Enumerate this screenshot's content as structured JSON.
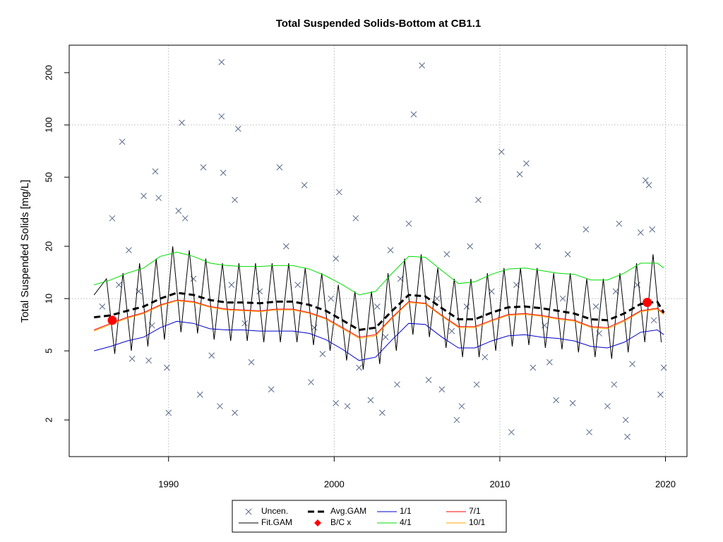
{
  "chart_data": {
    "type": "line",
    "title": "Total Suspended Solids-Bottom at CB1.1",
    "y_label": "Total Suspended Solids [mg/L]",
    "log_y": true,
    "xlim": [
      1984,
      2021.3
    ],
    "ylim": [
      1.23,
      288
    ],
    "xticks": [
      1990,
      2000,
      2010,
      2020
    ],
    "yticks": [
      2,
      5,
      10,
      20,
      50,
      100,
      200
    ],
    "x_grid": true,
    "y_grid": [
      10,
      100
    ],
    "series": [
      {
        "name": "Uncen.",
        "color": "#5b6b8c",
        "style": "points",
        "x": [
          1993.2,
          2005.3,
          2004.8,
          1993.2,
          1990.8,
          1994.2,
          1987.2,
          2010.1,
          2011.6,
          1989.2,
          1993.3,
          1996.7,
          1992.1,
          2011.2,
          2018.8,
          2019.0,
          1998.2,
          2000.3,
          1988.5,
          1989.4,
          2008.7,
          1994.0,
          1990.6,
          1986.6,
          1991.0,
          2001.3,
          2004.5,
          2017.2,
          2015.2,
          2019.2,
          2018.5,
          2008.2,
          1997.1,
          2012.3,
          2003.4,
          1987.6,
          2000.1,
          2006.8,
          2014.1,
          1989.9,
          1990.0,
          1991.9,
          1993.1,
          1994.0,
          1996.2,
          1998.6,
          2000.1,
          2000.8,
          2002.2,
          2002.9,
          2003.8,
          2005.7,
          2006.5,
          2007.4,
          2007.7,
          2008.6,
          2010.7,
          2012.0,
          2013.4,
          2014.4,
          2015.4,
          2016.5,
          2016.9,
          2017.6,
          2017.7,
          2019.7,
          2019.9,
          1987.8,
          1988.8,
          1992.6,
          1995.0,
          1999.3,
          2001.5,
          2009.1,
          2013.0,
          2018.0,
          1986.0,
          1987.0,
          1988.2,
          1991.5,
          1993.8,
          1995.5,
          1997.8,
          1999.8,
          2002.6,
          2004.0,
          2006.2,
          2008.0,
          2009.5,
          2011.0,
          2013.8,
          2015.8,
          2017.0,
          2018.3,
          1989.0,
          1994.6,
          1998.8,
          2003.1,
          2007.1,
          2012.7,
          2016.0,
          2019.3
        ],
        "values": [
          230,
          220,
          115,
          112,
          103,
          95,
          80,
          70,
          60,
          54,
          53,
          57,
          57,
          52,
          48,
          45,
          45,
          41,
          39,
          38,
          37,
          37,
          32,
          29,
          29,
          29,
          27,
          27,
          25,
          25,
          24,
          20,
          20,
          20,
          19,
          19,
          17,
          18,
          18,
          4.0,
          2.2,
          2.8,
          2.4,
          2.2,
          3.0,
          3.3,
          2.5,
          2.4,
          2.6,
          2.2,
          3.2,
          3.4,
          3.0,
          2.0,
          2.4,
          3.2,
          1.7,
          4.0,
          2.6,
          2.5,
          1.7,
          2.4,
          3.2,
          2.0,
          1.6,
          2.8,
          4.0,
          4.5,
          4.4,
          4.7,
          4.3,
          4.8,
          4.0,
          4.6,
          4.3,
          4.2,
          9,
          12,
          11,
          13,
          12,
          11,
          12,
          10,
          9,
          13,
          10,
          9,
          11,
          12,
          10,
          9,
          11,
          12,
          7,
          7.2,
          6.8,
          6,
          6.5,
          7,
          6.3,
          7.5
        ]
      },
      {
        "name": "Fit.GAM",
        "color": "#000000",
        "style": "line",
        "x": [
          1985.5,
          1986.25,
          1986.75,
          1987.25,
          1987.75,
          1988.25,
          1988.75,
          1989.25,
          1989.75,
          1990.25,
          1990.75,
          1991.25,
          1991.75,
          1992.25,
          1992.75,
          1993.25,
          1993.75,
          1994.25,
          1994.75,
          1995.25,
          1995.75,
          1996.25,
          1996.75,
          1997.25,
          1997.75,
          1998.25,
          1998.75,
          1999.25,
          1999.75,
          2000.25,
          2000.75,
          2001.25,
          2001.75,
          2002.25,
          2002.75,
          2003.25,
          2003.75,
          2004.25,
          2004.75,
          2005.25,
          2005.75,
          2006.25,
          2006.75,
          2007.25,
          2007.75,
          2008.25,
          2008.75,
          2009.25,
          2009.75,
          2010.25,
          2010.75,
          2011.25,
          2011.75,
          2012.25,
          2012.75,
          2013.25,
          2013.75,
          2014.25,
          2014.75,
          2015.25,
          2015.75,
          2016.25,
          2016.75,
          2017.25,
          2017.75,
          2018.25,
          2018.75,
          2019.25,
          2019.75
        ],
        "values": [
          10.5,
          13,
          4.8,
          14,
          5.0,
          16,
          5.3,
          17,
          5.8,
          20,
          6.4,
          19,
          6.3,
          17,
          5.8,
          16,
          5.7,
          16,
          5.7,
          16,
          5.6,
          16,
          5.6,
          16,
          5.6,
          15,
          5.4,
          14,
          5.0,
          12,
          4.4,
          11,
          3.9,
          11,
          4.2,
          14,
          5.0,
          17,
          6.2,
          18,
          6.0,
          15,
          5.2,
          13,
          4.6,
          13,
          4.6,
          14,
          5.0,
          15,
          5.3,
          15,
          5.4,
          15,
          5.2,
          14,
          5.1,
          14,
          4.9,
          13,
          4.6,
          13,
          4.5,
          14,
          4.9,
          16,
          5.6,
          18,
          5.6
        ]
      },
      {
        "name": "Avg.GAM",
        "color": "#000000",
        "style": "dashed",
        "x": [
          1985.5,
          1986.5,
          1987.5,
          1988.5,
          1989.5,
          1990.5,
          1991.5,
          1992.5,
          1993.5,
          1994.5,
          1995.5,
          1996.5,
          1997.5,
          1998.5,
          1999.5,
          2000.5,
          2001.5,
          2002.5,
          2003.5,
          2004.5,
          2005.5,
          2006.5,
          2007.5,
          2008.5,
          2009.5,
          2010.5,
          2011.5,
          2012.5,
          2013.5,
          2014.5,
          2015.5,
          2016.5,
          2017.5,
          2018.5,
          2019.5,
          2019.9
        ],
        "values": [
          7.8,
          8.0,
          8.5,
          9.0,
          10.0,
          10.8,
          10.5,
          9.8,
          9.5,
          9.5,
          9.4,
          9.6,
          9.6,
          9.2,
          8.5,
          7.5,
          6.6,
          6.8,
          8.5,
          10.5,
          10.3,
          8.8,
          7.6,
          7.6,
          8.3,
          8.9,
          9.0,
          8.8,
          8.5,
          8.2,
          7.6,
          7.5,
          8.2,
          9.3,
          9.6,
          8.3
        ]
      },
      {
        "name": "B/C x",
        "color": "#ff0000",
        "style": "dots",
        "x": [
          1986.6,
          2018.9
        ],
        "values": [
          7.5,
          9.5
        ]
      },
      {
        "name": "1/1",
        "color": "#0000cd",
        "style": "line",
        "x": [
          1985.5,
          1986.5,
          1987.5,
          1988.5,
          1989.5,
          1990.5,
          1991.5,
          1992.5,
          1993.5,
          1994.5,
          1995.5,
          1996.5,
          1997.5,
          1998.5,
          1999.5,
          2000.5,
          2001.5,
          2002.5,
          2003.5,
          2004.5,
          2005.5,
          2006.5,
          2007.5,
          2008.5,
          2009.5,
          2010.5,
          2011.5,
          2012.5,
          2013.5,
          2014.5,
          2015.5,
          2016.5,
          2017.5,
          2018.5,
          2019.5,
          2019.9
        ],
        "values": [
          5.0,
          5.3,
          5.7,
          6.0,
          6.8,
          7.4,
          7.2,
          6.7,
          6.6,
          6.6,
          6.5,
          6.5,
          6.5,
          6.3,
          5.8,
          5.1,
          4.4,
          4.6,
          5.8,
          7.2,
          7.1,
          6.0,
          5.2,
          5.2,
          5.7,
          6.1,
          6.2,
          6.0,
          5.9,
          5.7,
          5.3,
          5.2,
          5.6,
          6.4,
          6.6,
          6.2
        ]
      },
      {
        "name": "4/1",
        "color": "#00dd00",
        "style": "line",
        "x": [
          1985.5,
          1986.5,
          1987.5,
          1988.5,
          1989.5,
          1990.5,
          1991.5,
          1992.5,
          1993.5,
          1994.5,
          1995.5,
          1996.5,
          1997.5,
          1998.5,
          1999.5,
          2000.5,
          2001.5,
          2002.5,
          2003.5,
          2004.5,
          2005.5,
          2006.5,
          2007.5,
          2008.5,
          2009.5,
          2010.5,
          2011.5,
          2012.5,
          2013.5,
          2014.5,
          2015.5,
          2016.5,
          2017.5,
          2018.5,
          2019.5,
          2019.9
        ],
        "values": [
          12,
          12.8,
          14,
          15,
          17.5,
          18.5,
          17.5,
          16,
          15.5,
          15.3,
          15.3,
          15.5,
          15.5,
          14.8,
          13.5,
          12,
          10.5,
          11,
          14,
          17.5,
          17.3,
          14.5,
          12.2,
          12.5,
          13.8,
          14.8,
          15,
          14.5,
          14,
          13.8,
          12.8,
          12.8,
          14,
          16,
          16,
          15
        ]
      },
      {
        "name": "7/1",
        "color": "#ff0000",
        "style": "line",
        "x": [
          1985.5,
          1986.5,
          1987.5,
          1988.5,
          1989.5,
          1990.5,
          1991.5,
          1992.5,
          1993.5,
          1994.5,
          1995.5,
          1996.5,
          1997.5,
          1998.5,
          1999.5,
          2000.5,
          2001.5,
          2002.5,
          2003.5,
          2004.5,
          2005.5,
          2006.5,
          2007.5,
          2008.5,
          2009.5,
          2010.5,
          2011.5,
          2012.5,
          2013.5,
          2014.5,
          2015.5,
          2016.5,
          2017.5,
          2018.5,
          2019.5,
          2019.9
        ],
        "values": [
          6.6,
          7.2,
          7.8,
          8.3,
          9.2,
          9.8,
          9.6,
          9.0,
          8.7,
          8.6,
          8.5,
          8.7,
          8.7,
          8.3,
          7.7,
          6.8,
          6.0,
          6.2,
          7.8,
          9.6,
          9.4,
          8.0,
          6.9,
          6.9,
          7.5,
          8.1,
          8.2,
          8.0,
          7.7,
          7.5,
          6.9,
          6.8,
          7.5,
          8.5,
          8.8,
          8.2
        ]
      },
      {
        "name": "10/1",
        "color": "#ffa500",
        "style": "line",
        "x": [
          1985.5,
          1986.5,
          1987.5,
          1988.5,
          1989.5,
          1990.5,
          1991.5,
          1992.5,
          1993.5,
          1994.5,
          1995.5,
          1996.5,
          1997.5,
          1998.5,
          1999.5,
          2000.5,
          2001.5,
          2002.5,
          2003.5,
          2004.5,
          2005.5,
          2006.5,
          2007.5,
          2008.5,
          2009.5,
          2010.5,
          2011.5,
          2012.5,
          2013.5,
          2014.5,
          2015.5,
          2016.5,
          2017.5,
          2018.5,
          2019.5,
          2019.9
        ],
        "values": [
          6.5,
          7.1,
          7.7,
          8.2,
          9.1,
          9.7,
          9.5,
          8.9,
          8.6,
          8.5,
          8.4,
          8.6,
          8.6,
          8.2,
          7.6,
          6.7,
          5.9,
          6.1,
          7.7,
          9.5,
          9.3,
          7.9,
          6.8,
          6.8,
          7.4,
          8.0,
          8.1,
          7.9,
          7.6,
          7.4,
          6.8,
          6.7,
          7.4,
          8.4,
          8.7,
          8.1
        ]
      }
    ]
  }
}
